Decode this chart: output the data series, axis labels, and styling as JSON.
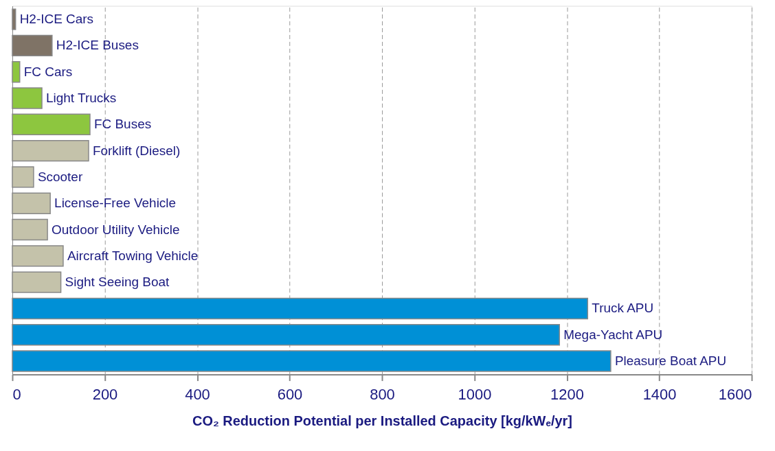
{
  "chart_data": {
    "type": "bar",
    "orientation": "horizontal",
    "xlabel": "CO₂ Reduction Potential per Installed Capacity [kg/kWₑ/yr]",
    "categories": [
      "H2-ICE Cars",
      "H2-ICE Buses",
      "FC Cars",
      "Light Trucks",
      "FC Buses",
      "Forklift (Diesel)",
      "Scooter",
      "License-Free Vehicle",
      "Outdoor Utility Vehicle",
      "Aircraft Towing Vehicle",
      "Sight Seeing Boat",
      "Truck APU",
      "Mega-Yacht APU",
      "Pleasure Boat APU"
    ],
    "values": [
      7,
      86,
      16,
      64,
      168,
      165,
      46,
      82,
      76,
      110,
      105,
      1245,
      1184,
      1295
    ],
    "colors": [
      "#7f7366",
      "#7f7366",
      "#8dc63f",
      "#8dc63f",
      "#8dc63f",
      "#c4c2aa",
      "#c4c2aa",
      "#c4c2aa",
      "#c4c2aa",
      "#c4c2aa",
      "#c4c2aa",
      "#0090d6",
      "#0090d6",
      "#0090d6"
    ],
    "xlim": [
      0,
      1600
    ],
    "xticks": [
      0,
      200,
      400,
      600,
      800,
      1000,
      1200,
      1400,
      1600
    ],
    "grid": "x",
    "tick_labels": "x"
  }
}
